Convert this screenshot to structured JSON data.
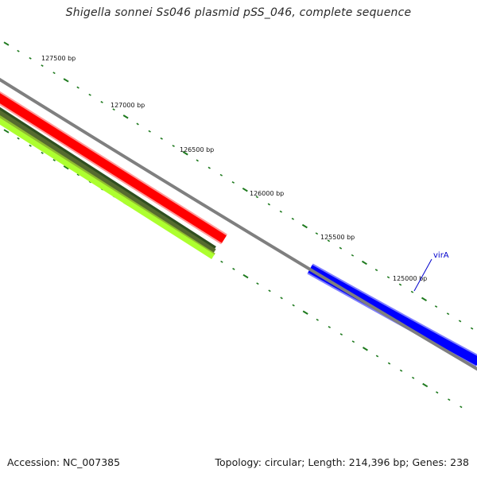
{
  "title": "Shigella sonnei Ss046 plasmid pSS_046, complete sequence",
  "tick_labels": [
    "127500 bp",
    "127000 bp",
    "126500 bp",
    "126000 bp",
    "125500 bp",
    "125000 bp"
  ],
  "gene_labels": [
    "virA"
  ],
  "footer": {
    "accession": "Accession: NC_007385",
    "stats": "Topology: circular; Length: 214,396 bp; Genes: 238"
  },
  "colors": {
    "backbone": "#7f7f7f",
    "tick": "#1e7a1e",
    "forward_feature": "#ff0000",
    "reverse_feature": "#0000ff",
    "track_dark_green": "#556b2f",
    "track_light_green": "#adff2f",
    "label_line": "#0000cc"
  }
}
